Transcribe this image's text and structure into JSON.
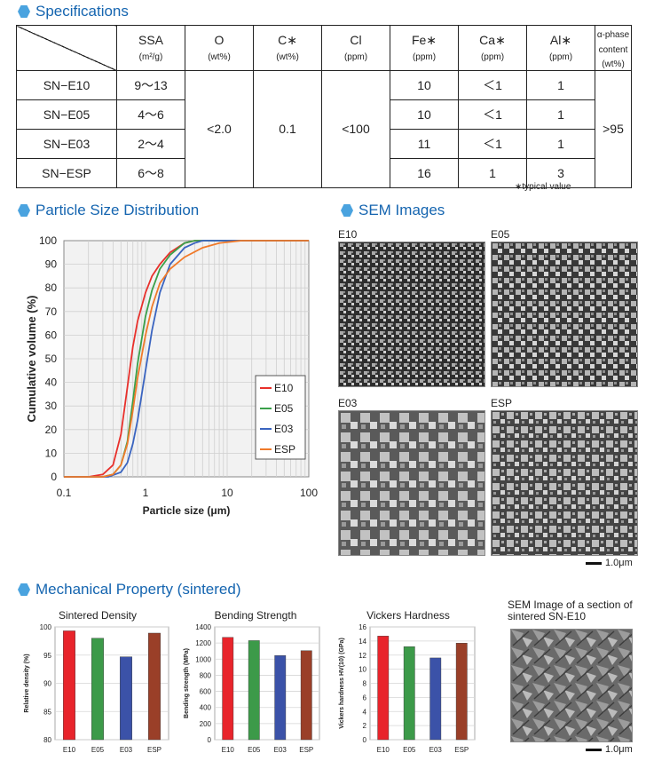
{
  "sections": {
    "specifications": "Specifications",
    "psd": "Particle Size Distribution",
    "sem": "SEM Images",
    "mech": "Mechanical Property (sintered)"
  },
  "spec_table": {
    "headers": [
      {
        "name": "SSA",
        "unit": "(m²/g)"
      },
      {
        "name": "O",
        "unit": "(wt%)"
      },
      {
        "name": "C∗",
        "unit": "(wt%)"
      },
      {
        "name": "Cl",
        "unit": "(ppm)"
      },
      {
        "name": "Fe∗",
        "unit": "(ppm)"
      },
      {
        "name": "Ca∗",
        "unit": "(ppm)"
      },
      {
        "name": "Al∗",
        "unit": "(ppm)"
      },
      {
        "name": "α-phase content",
        "unit": "(wt%)"
      }
    ],
    "rows": [
      {
        "grade": "SN−E10",
        "ssa": "9〜13",
        "fe": "10",
        "ca": "＜1",
        "al": "1"
      },
      {
        "grade": "SN−E05",
        "ssa": "4〜6",
        "fe": "10",
        "ca": "＜1",
        "al": "1"
      },
      {
        "grade": "SN−E03",
        "ssa": "2〜4",
        "fe": "11",
        "ca": "＜1",
        "al": "1"
      },
      {
        "grade": "SN−ESP",
        "ssa": "6〜8",
        "fe": "16",
        "ca": "1",
        "al": "3"
      }
    ],
    "merged": {
      "o": "<2.0",
      "c": "0.1",
      "cl": "<100",
      "alpha": ">95"
    },
    "note": "∗typical value"
  },
  "chart_data": [
    {
      "type": "line",
      "xlabel": "Particle size  (μm)",
      "ylabel": "Cumulative volume  (%)",
      "xscale": "log",
      "xlim": [
        0.1,
        100
      ],
      "ylim": [
        0,
        100
      ],
      "xticks": [
        "0.1",
        "1",
        "10",
        "100"
      ],
      "yticks": [
        "0",
        "10",
        "20",
        "30",
        "40",
        "50",
        "60",
        "70",
        "80",
        "90",
        "100"
      ],
      "grid": true,
      "legend_position": "bottom-right",
      "series": [
        {
          "name": "E10",
          "color": "#e8302b",
          "x": [
            0.2,
            0.3,
            0.4,
            0.5,
            0.6,
            0.7,
            0.8,
            1.0,
            1.2,
            1.5,
            2.0,
            3.0,
            4.0,
            6.0,
            10
          ],
          "y": [
            0,
            1,
            5,
            18,
            38,
            55,
            66,
            78,
            85,
            90,
            95,
            99,
            100,
            100,
            100
          ]
        },
        {
          "name": "E05",
          "color": "#3aa04a",
          "x": [
            0.3,
            0.4,
            0.5,
            0.6,
            0.7,
            0.8,
            1.0,
            1.2,
            1.5,
            2.0,
            3.0,
            4.0,
            6.0,
            10
          ],
          "y": [
            0,
            1,
            5,
            15,
            32,
            48,
            68,
            79,
            88,
            94,
            99,
            100,
            100,
            100
          ]
        },
        {
          "name": "E03",
          "color": "#3a64c0",
          "x": [
            0.35,
            0.5,
            0.6,
            0.7,
            0.8,
            1.0,
            1.2,
            1.5,
            2.0,
            3.0,
            4.0,
            5.0,
            6.0,
            10
          ],
          "y": [
            0,
            2,
            6,
            14,
            24,
            45,
            62,
            78,
            90,
            97,
            99,
            100,
            100,
            100
          ]
        },
        {
          "name": "ESP",
          "color": "#f07a2a",
          "x": [
            0.3,
            0.4,
            0.5,
            0.6,
            0.7,
            0.8,
            1.0,
            1.2,
            1.5,
            2.0,
            3.0,
            5.0,
            8.0,
            15,
            30
          ],
          "y": [
            0,
            1,
            5,
            14,
            28,
            42,
            60,
            72,
            82,
            88,
            93,
            97,
            99,
            100,
            100
          ]
        }
      ]
    },
    {
      "type": "bar",
      "title": "Sintered Density",
      "ylabel": "Relative density  (%)",
      "categories": [
        "E10",
        "E05",
        "E03",
        "ESP"
      ],
      "values": [
        99.3,
        98.0,
        94.7,
        98.9
      ],
      "ylim": [
        80,
        100
      ],
      "yticks": [
        "80",
        "85",
        "90",
        "95",
        "100"
      ],
      "colors": [
        "#e8242b",
        "#3c9a49",
        "#3b52a8",
        "#9a3f28"
      ]
    },
    {
      "type": "bar",
      "title": "Bending Strength",
      "ylabel": "Bending strength (MPa)",
      "categories": [
        "E10",
        "E05",
        "E03",
        "ESP"
      ],
      "values": [
        1270,
        1230,
        1045,
        1105
      ],
      "ylim": [
        0,
        1400
      ],
      "yticks": [
        "0",
        "200",
        "400",
        "600",
        "800",
        "1000",
        "1200",
        "1400"
      ],
      "colors": [
        "#e8242b",
        "#3c9a49",
        "#3b52a8",
        "#9a3f28"
      ]
    },
    {
      "type": "bar",
      "title": "Vickers Hardness",
      "ylabel": "Vickers hardness HV(10) (GPa)",
      "categories": [
        "E10",
        "E05",
        "E03",
        "ESP"
      ],
      "values": [
        14.7,
        13.2,
        11.6,
        13.7
      ],
      "ylim": [
        0,
        16
      ],
      "yticks": [
        "0",
        "2",
        "4",
        "6",
        "8",
        "10",
        "12",
        "14",
        "16"
      ],
      "colors": [
        "#e8242b",
        "#3c9a49",
        "#3b52a8",
        "#9a3f28"
      ]
    }
  ],
  "sem_images": {
    "labels": [
      "E10",
      "E05",
      "E03",
      "ESP"
    ],
    "scale": "1.0μm",
    "section_title": "SEM Image of a section of sintered SN-E10"
  }
}
